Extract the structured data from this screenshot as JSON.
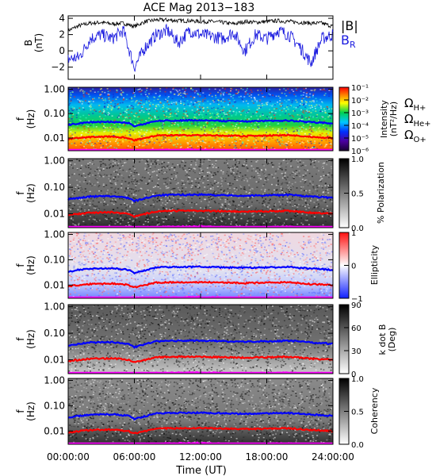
{
  "title": "ACE Mag 2013−183",
  "xaxis": {
    "label": "Time (UT)",
    "range": [
      0,
      24
    ],
    "ticks": [
      0,
      6,
      12,
      18,
      24
    ],
    "tick_labels": [
      "00:00:00",
      "06:00:00",
      "12:00:00",
      "18:00:00",
      "24:00:00"
    ]
  },
  "colors": {
    "B": "#000000",
    "BR": "#1a1adf",
    "H": "#0000ff",
    "He": "#ff0000",
    "O": "#ff00ff"
  },
  "chart_data": [
    {
      "type": "line",
      "ylabel": "B\n(nT)",
      "ylim": [
        -3.5,
        4.3
      ],
      "y_ticks": [
        -2,
        0,
        2,
        4
      ],
      "y_tick_labels": [
        "−2",
        "0",
        "2",
        "4"
      ],
      "legend": [
        "|B|",
        "B",
        "R"
      ],
      "series": [
        {
          "name": "|B|",
          "x": [
            0,
            1,
            2,
            3,
            4,
            5,
            6,
            7,
            8,
            9,
            10,
            11,
            12,
            13,
            14,
            15,
            16,
            17,
            18,
            19,
            20,
            21,
            22,
            23,
            24
          ],
          "values": [
            2.5,
            3.1,
            3.4,
            3.5,
            3.3,
            3.4,
            3.0,
            3.6,
            3.8,
            3.8,
            3.7,
            3.7,
            3.6,
            3.6,
            3.5,
            3.3,
            3.6,
            3.5,
            3.6,
            3.7,
            3.6,
            3.5,
            3.4,
            3.4,
            3.0
          ]
        },
        {
          "name": "B_R",
          "x": [
            0,
            1,
            2,
            3,
            4,
            5,
            6,
            7,
            8,
            9,
            10,
            11,
            12,
            13,
            14,
            15,
            16,
            17,
            18,
            19,
            20,
            21,
            22,
            23,
            24
          ],
          "values": [
            -1.0,
            -0.8,
            1.5,
            2.0,
            1.5,
            2.5,
            -2.0,
            0.5,
            2.0,
            2.5,
            1.0,
            2.5,
            2.0,
            1.8,
            1.5,
            2.3,
            0.0,
            2.0,
            1.5,
            2.5,
            2.0,
            0.5,
            -1.5,
            1.5,
            2.0
          ]
        }
      ]
    },
    {
      "type": "heatmap",
      "ylabel": "f\n(Hz)",
      "yscale": "log",
      "ylim": [
        0.003,
        1.2
      ],
      "y_ticks": [
        0.01,
        0.1,
        1
      ],
      "y_tick_labels": [
        "0.01",
        "0.10",
        "1.00"
      ],
      "colorbar": {
        "label": "Intensity\n(nT²/Hz)",
        "scale": "log",
        "range": [
          -6,
          -1
        ],
        "ticks": [
          -1,
          -2,
          -3,
          -4,
          -5,
          -6
        ],
        "tick_labels": [
          "10⁻¹",
          "10⁻²",
          "10⁻³",
          "10⁻⁴",
          "10⁻⁵",
          "10⁻⁶"
        ],
        "colormap": "rainbow"
      },
      "legend": [
        "Ω",
        "H+",
        "Ω",
        "He+",
        "Ω",
        "O+"
      ]
    },
    {
      "type": "heatmap",
      "ylabel": "f\n(Hz)",
      "yscale": "log",
      "ylim": [
        0.003,
        1.2
      ],
      "y_ticks": [
        0.01,
        0.1,
        1
      ],
      "y_tick_labels": [
        "0.01",
        "0.10",
        "1.00"
      ],
      "colorbar": {
        "label": "% Polarization",
        "range": [
          0,
          1
        ],
        "ticks": [
          1.0,
          0.5,
          0.0
        ],
        "tick_labels": [
          "1.0",
          "0.5",
          "0.0"
        ],
        "colormap": "gray"
      }
    },
    {
      "type": "heatmap",
      "ylabel": "f\n(Hz)",
      "yscale": "log",
      "ylim": [
        0.003,
        1.2
      ],
      "y_ticks": [
        0.01,
        0.1,
        1
      ],
      "y_tick_labels": [
        "0.01",
        "0.10",
        "1.00"
      ],
      "colorbar": {
        "label": "Ellipticity",
        "range": [
          -1,
          1
        ],
        "ticks": [
          1,
          0,
          -1
        ],
        "tick_labels": [
          "1",
          "0",
          "−1"
        ],
        "colormap": "blue-white-red"
      }
    },
    {
      "type": "heatmap",
      "ylabel": "f\n(Hz)",
      "yscale": "log",
      "ylim": [
        0.003,
        1.2
      ],
      "y_ticks": [
        0.01,
        0.1,
        1
      ],
      "y_tick_labels": [
        "0.01",
        "0.10",
        "1.00"
      ],
      "colorbar": {
        "label": "k dot B\n(Deg)",
        "range": [
          0,
          90
        ],
        "ticks": [
          90,
          60,
          30,
          0
        ],
        "tick_labels": [
          "90",
          "60",
          "30",
          "0"
        ],
        "colormap": "gray"
      }
    },
    {
      "type": "heatmap",
      "ylabel": "f\n(Hz)",
      "yscale": "log",
      "ylim": [
        0.003,
        1.2
      ],
      "y_ticks": [
        0.01,
        0.1,
        1
      ],
      "y_tick_labels": [
        "0.01",
        "0.10",
        "1.00"
      ],
      "colorbar": {
        "label": "Coherency",
        "range": [
          0,
          1
        ],
        "ticks": [
          1.0,
          0.5,
          0.0
        ],
        "tick_labels": [
          "1.0",
          "0.5",
          "0.0"
        ],
        "colormap": "gray"
      }
    }
  ],
  "gyrofrequencies": {
    "x": [
      0,
      2,
      4,
      5.5,
      6,
      8,
      10,
      12,
      14,
      16,
      18,
      20,
      22,
      24
    ],
    "H_plus": [
      0.035,
      0.045,
      0.046,
      0.04,
      0.03,
      0.05,
      0.052,
      0.053,
      0.05,
      0.048,
      0.05,
      0.052,
      0.045,
      0.04
    ],
    "He_plus": [
      0.009,
      0.011,
      0.0115,
      0.01,
      0.008,
      0.0125,
      0.013,
      0.013,
      0.0125,
      0.012,
      0.0125,
      0.013,
      0.011,
      0.01
    ],
    "O_plus": [
      0.0022,
      0.0028,
      0.0029,
      0.0025,
      0.002,
      0.0031,
      0.0032,
      0.0033,
      0.0031,
      0.003,
      0.0031,
      0.0032,
      0.0028,
      0.0025
    ]
  }
}
